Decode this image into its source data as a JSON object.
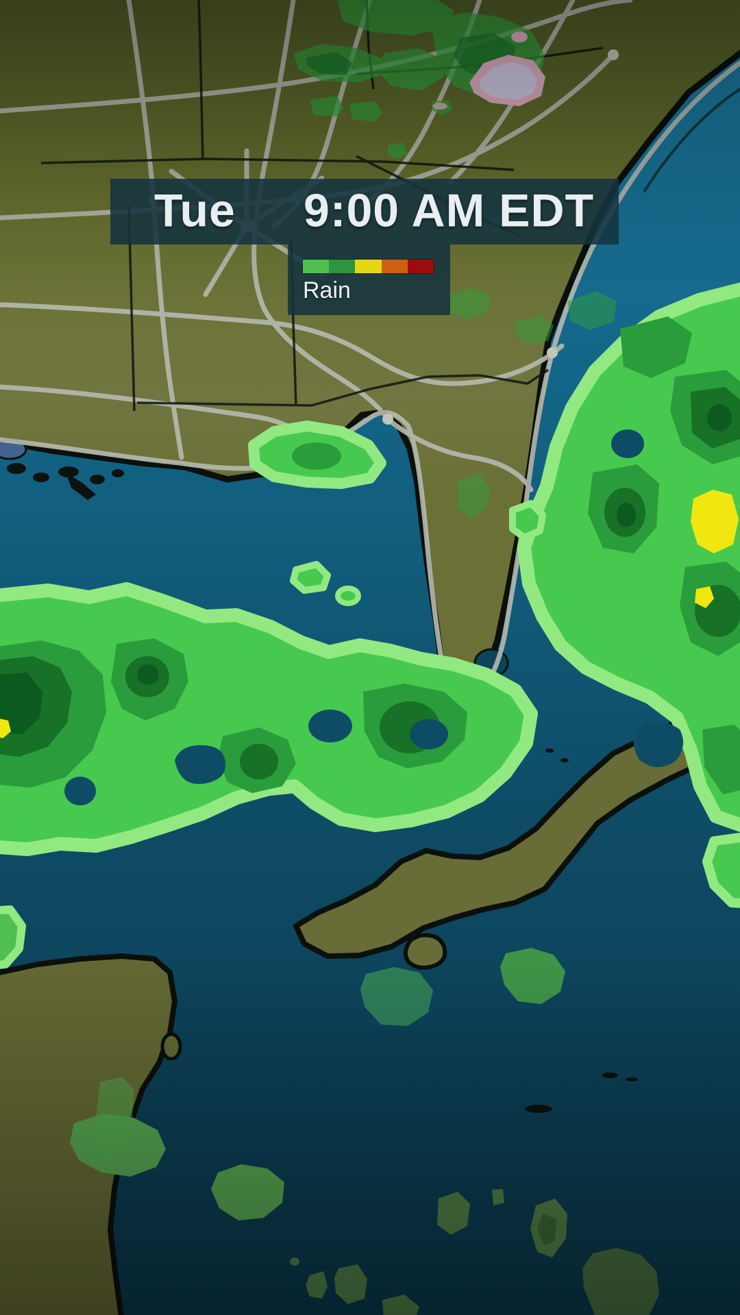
{
  "overlay": {
    "bar": {
      "day": "Tue",
      "time": "9:00 AM EDT"
    },
    "legend": {
      "label": "Rain",
      "colors": [
        "#4fc050",
        "#2f9440",
        "#e5d714",
        "#cd5f10",
        "#9c0c0e"
      ]
    },
    "panel_color": "#15333f",
    "text_color": "#e9eef0"
  },
  "map": {
    "palette": {
      "water_north": "#1b7ba1",
      "water_south": "#0a384c",
      "land_olive": "#6b7037",
      "road_gray": "#b6bab0",
      "border_black": "#10150f",
      "coast_shadow": "#0b100c",
      "lake_blue": "#46628f"
    },
    "precipitation": {
      "type": "rain",
      "levels": [
        "#93e981",
        "#47c94f",
        "#2b9c3b",
        "#177127",
        "#0d5a20",
        "#f0e711"
      ],
      "mixed_precip": [
        "#dcaabe",
        "#ccc5df"
      ],
      "dim_south_green": "#4e7e46"
    }
  }
}
